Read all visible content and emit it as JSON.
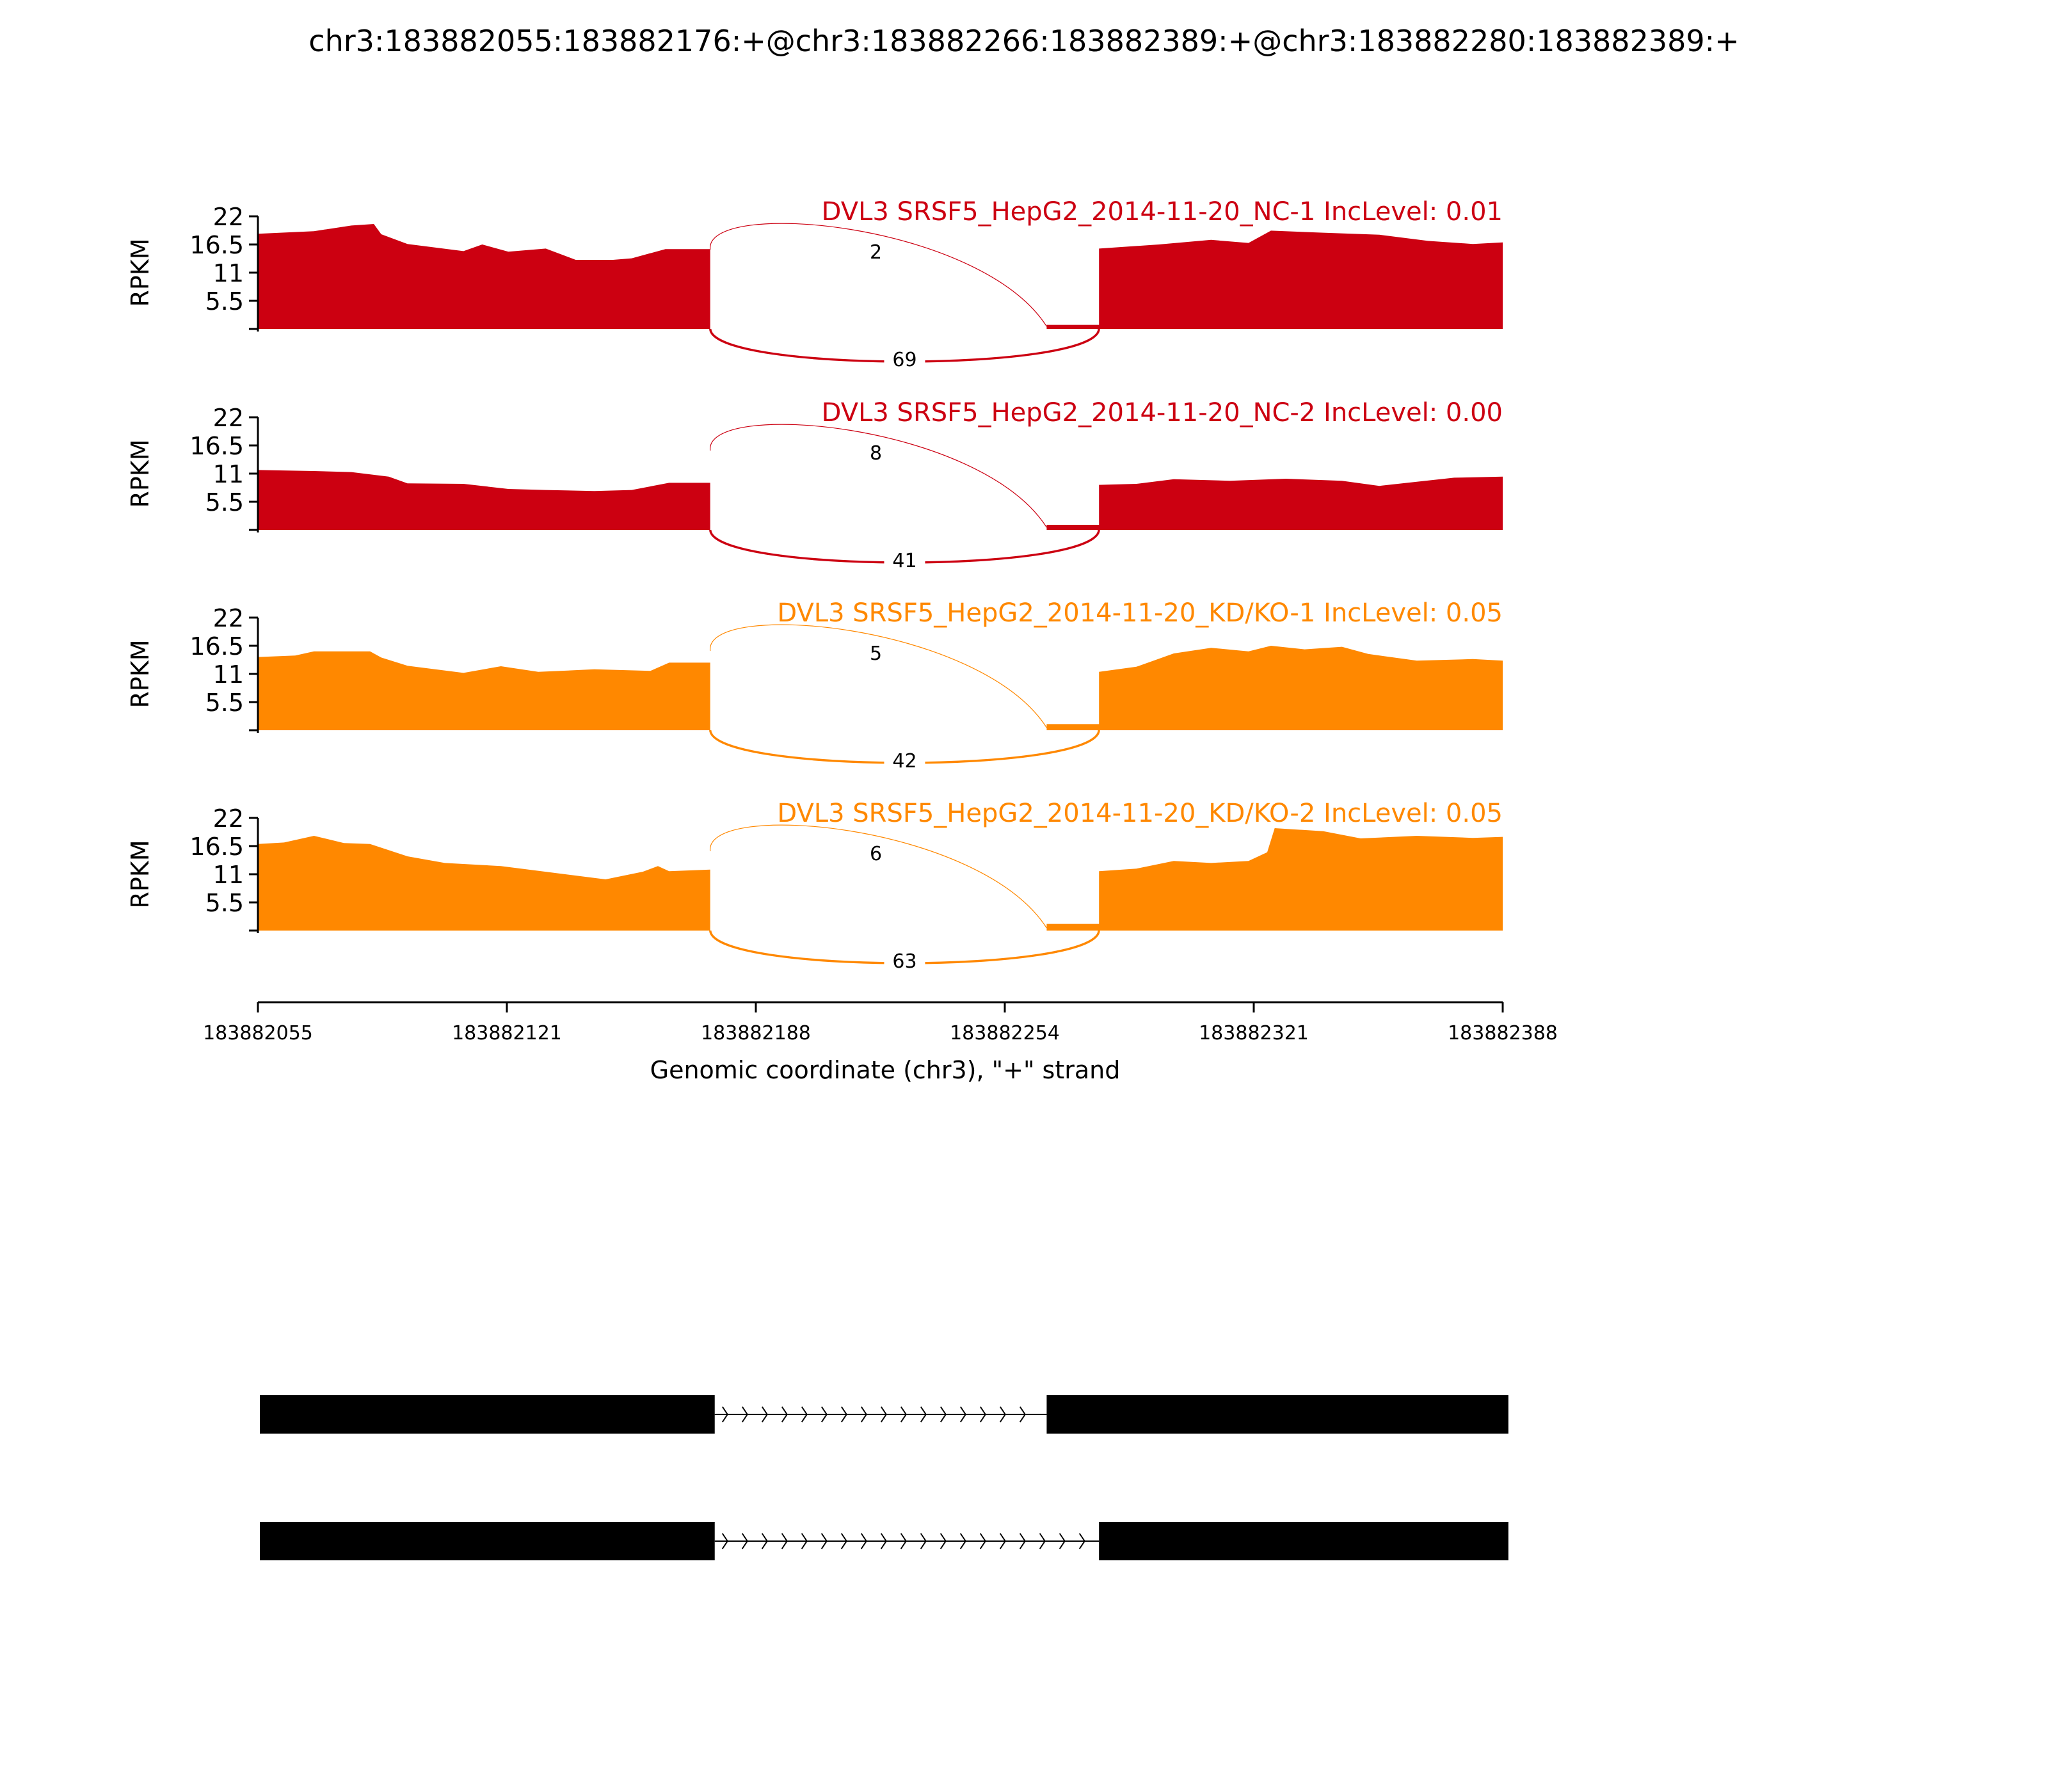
{
  "title": "chr3:183882055:183882176:+@chr3:183882266:183882389:+@chr3:183882280:183882389:+",
  "chart_data": {
    "type": "area",
    "title": "chr3:183882055:183882176:+@chr3:183882266:183882389:+@chr3:183882280:183882389:+",
    "xlabel": "Genomic coordinate (chr3), \"+\" strand",
    "ylabel": "RPKM",
    "xlim": [
      183882055,
      183882388
    ],
    "ylim": [
      0,
      22
    ],
    "xticks": [
      "183882055",
      "183882121",
      "183882188",
      "183882254",
      "183882321",
      "183882388"
    ],
    "yticks": [
      "22",
      "16.5",
      "11",
      "5.5"
    ],
    "tracks": [
      {
        "label": "DVL3 SRSF5_HepG2_2014-11-20_NC-1 IncLevel: 0.01",
        "color": "#cc0011",
        "coverage": [
          [
            183882055,
            18.6
          ],
          [
            183882070,
            19.1
          ],
          [
            183882080,
            20.2
          ],
          [
            183882086,
            20.5
          ],
          [
            183882088,
            18.5
          ],
          [
            183882095,
            16.6
          ],
          [
            183882110,
            15.2
          ],
          [
            183882115,
            16.5
          ],
          [
            183882122,
            15.1
          ],
          [
            183882132,
            15.7
          ],
          [
            183882140,
            13.5
          ],
          [
            183882150,
            13.5
          ],
          [
            183882155,
            13.8
          ],
          [
            183882164,
            15.6
          ],
          [
            183882174,
            15.6
          ],
          [
            183882176,
            15.6
          ],
          [
            183882176,
            0
          ],
          [
            183882266,
            0
          ],
          [
            183882266,
            0.8
          ],
          [
            183882280,
            0.8
          ],
          [
            183882280,
            15.7
          ],
          [
            183882296,
            16.5
          ],
          [
            183882310,
            17.4
          ],
          [
            183882320,
            16.8
          ],
          [
            183882326,
            19.2
          ],
          [
            183882340,
            18.8
          ],
          [
            183882355,
            18.4
          ],
          [
            183882368,
            17.2
          ],
          [
            183882380,
            16.6
          ],
          [
            183882388,
            16.9
          ],
          [
            183882388,
            0
          ]
        ],
        "junctions": [
          {
            "start": 183882176,
            "end": 183882266,
            "count": "2",
            "side": "above"
          },
          {
            "start": 183882176,
            "end": 183882280,
            "count": "69",
            "side": "below"
          }
        ]
      },
      {
        "label": "DVL3 SRSF5_HepG2_2014-11-20_NC-2 IncLevel: 0.00",
        "color": "#cc0011",
        "coverage": [
          [
            183882055,
            11.7
          ],
          [
            183882070,
            11.5
          ],
          [
            183882080,
            11.3
          ],
          [
            183882090,
            10.4
          ],
          [
            183882095,
            9.1
          ],
          [
            183882110,
            9.0
          ],
          [
            183882122,
            8.0
          ],
          [
            183882132,
            7.8
          ],
          [
            183882145,
            7.6
          ],
          [
            183882155,
            7.8
          ],
          [
            183882165,
            9.2
          ],
          [
            183882176,
            9.2
          ],
          [
            183882176,
            0
          ],
          [
            183882266,
            0
          ],
          [
            183882266,
            1.0
          ],
          [
            183882280,
            1.0
          ],
          [
            183882280,
            8.8
          ],
          [
            183882290,
            9.0
          ],
          [
            183882300,
            9.9
          ],
          [
            183882315,
            9.6
          ],
          [
            183882330,
            10.0
          ],
          [
            183882345,
            9.6
          ],
          [
            183882355,
            8.6
          ],
          [
            183882365,
            9.4
          ],
          [
            183882375,
            10.2
          ],
          [
            183882388,
            10.4
          ],
          [
            183882388,
            0
          ]
        ],
        "junctions": [
          {
            "start": 183882176,
            "end": 183882266,
            "count": "8",
            "side": "above"
          },
          {
            "start": 183882176,
            "end": 183882280,
            "count": "41",
            "side": "below"
          }
        ]
      },
      {
        "label": "DVL3 SRSF5_HepG2_2014-11-20_KD/KO-1 IncLevel: 0.05",
        "color": "#ff8800",
        "coverage": [
          [
            183882055,
            14.3
          ],
          [
            183882065,
            14.6
          ],
          [
            183882070,
            15.4
          ],
          [
            183882085,
            15.4
          ],
          [
            183882088,
            14.2
          ],
          [
            183882095,
            12.6
          ],
          [
            183882110,
            11.2
          ],
          [
            183882120,
            12.5
          ],
          [
            183882130,
            11.4
          ],
          [
            183882145,
            11.9
          ],
          [
            183882160,
            11.6
          ],
          [
            183882165,
            13.2
          ],
          [
            183882176,
            13.2
          ],
          [
            183882176,
            0
          ],
          [
            183882266,
            0
          ],
          [
            183882266,
            1.2
          ],
          [
            183882280,
            1.2
          ],
          [
            183882280,
            11.4
          ],
          [
            183882290,
            12.4
          ],
          [
            183882300,
            15.0
          ],
          [
            183882310,
            16.1
          ],
          [
            183882320,
            15.4
          ],
          [
            183882326,
            16.5
          ],
          [
            183882335,
            15.8
          ],
          [
            183882345,
            16.3
          ],
          [
            183882352,
            14.9
          ],
          [
            183882365,
            13.6
          ],
          [
            183882380,
            13.9
          ],
          [
            183882388,
            13.6
          ],
          [
            183882388,
            0
          ]
        ],
        "junctions": [
          {
            "start": 183882176,
            "end": 183882266,
            "count": "5",
            "side": "above"
          },
          {
            "start": 183882176,
            "end": 183882280,
            "count": "42",
            "side": "below"
          }
        ]
      },
      {
        "label": "DVL3 SRSF5_HepG2_2014-11-20_KD/KO-2 IncLevel: 0.05",
        "color": "#ff8800",
        "coverage": [
          [
            183882055,
            16.9
          ],
          [
            183882062,
            17.2
          ],
          [
            183882070,
            18.5
          ],
          [
            183882078,
            17.1
          ],
          [
            183882085,
            16.9
          ],
          [
            183882095,
            14.5
          ],
          [
            183882105,
            13.2
          ],
          [
            183882120,
            12.6
          ],
          [
            183882135,
            11.2
          ],
          [
            183882148,
            10.0
          ],
          [
            183882158,
            11.5
          ],
          [
            183882162,
            12.6
          ],
          [
            183882165,
            11.6
          ],
          [
            183882176,
            11.9
          ],
          [
            183882176,
            0
          ],
          [
            183882266,
            0
          ],
          [
            183882266,
            1.3
          ],
          [
            183882280,
            1.3
          ],
          [
            183882280,
            11.6
          ],
          [
            183882290,
            12.1
          ],
          [
            183882300,
            13.6
          ],
          [
            183882310,
            13.2
          ],
          [
            183882320,
            13.6
          ],
          [
            183882325,
            15.3
          ],
          [
            183882327,
            20.0
          ],
          [
            183882340,
            19.4
          ],
          [
            183882350,
            18.0
          ],
          [
            183882365,
            18.5
          ],
          [
            183882380,
            18.1
          ],
          [
            183882388,
            18.3
          ],
          [
            183882388,
            0
          ]
        ],
        "junctions": [
          {
            "start": 183882176,
            "end": 183882266,
            "count": "6",
            "side": "above"
          },
          {
            "start": 183882176,
            "end": 183882280,
            "count": "63",
            "side": "below"
          }
        ]
      }
    ],
    "isoforms": [
      {
        "exons": [
          [
            183882055,
            183882176
          ],
          [
            183882266,
            183882389
          ]
        ]
      },
      {
        "exons": [
          [
            183882055,
            183882176
          ],
          [
            183882280,
            183882389
          ]
        ]
      }
    ]
  }
}
